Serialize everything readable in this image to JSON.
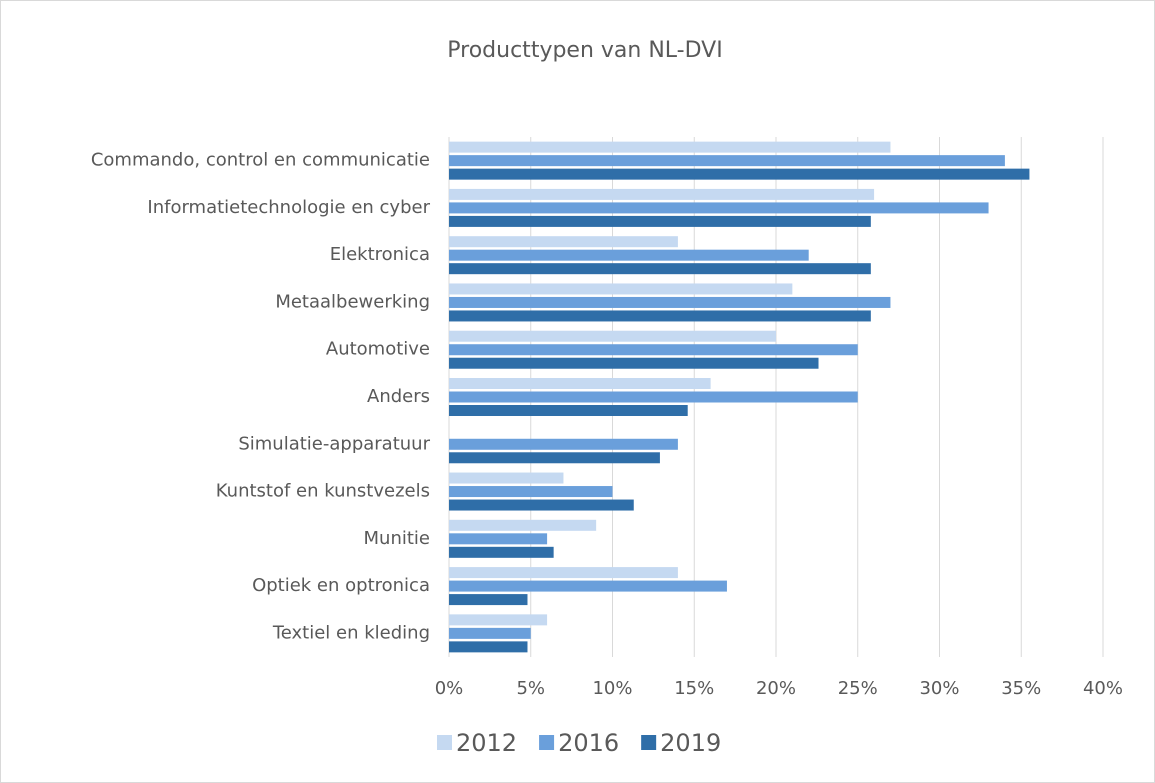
{
  "chart_data": {
    "type": "bar",
    "orientation": "horizontal",
    "title": "Producttypen van NL-DVI",
    "categories": [
      "Commando, control en communicatie",
      "Informatietechnologie en cyber",
      "Elektronica",
      "Metaalbewerking",
      "Automotive",
      "Anders",
      "Simulatie-apparatuur",
      "Kuntstof en kunstvezels",
      "Munitie",
      "Optiek en optronica",
      "Textiel en kleding"
    ],
    "series": [
      {
        "name": "2012",
        "color": "#c5d9f1",
        "values": [
          27,
          26,
          14,
          21,
          20,
          16,
          null,
          7,
          9,
          14,
          6
        ]
      },
      {
        "name": "2016",
        "color": "#6a9fdb",
        "values": [
          34,
          33,
          22,
          27,
          25,
          25,
          14,
          10,
          6,
          17,
          5
        ]
      },
      {
        "name": "2019",
        "color": "#2f6ea8",
        "values": [
          35.5,
          25.8,
          25.8,
          25.8,
          22.6,
          14.6,
          12.9,
          11.3,
          6.4,
          4.8,
          4.8
        ]
      }
    ],
    "xlim": [
      0,
      40
    ],
    "xticks": [
      {
        "value": 0,
        "label": "0%"
      },
      {
        "value": 5,
        "label": "5%"
      },
      {
        "value": 10,
        "label": "10%"
      },
      {
        "value": 15,
        "label": "15%"
      },
      {
        "value": 20,
        "label": "20%"
      },
      {
        "value": 25,
        "label": "25%"
      },
      {
        "value": 30,
        "label": "30%"
      },
      {
        "value": 35,
        "label": "35%"
      },
      {
        "value": 40,
        "label": "40%"
      }
    ],
    "grid": true,
    "legend": "bottom"
  }
}
